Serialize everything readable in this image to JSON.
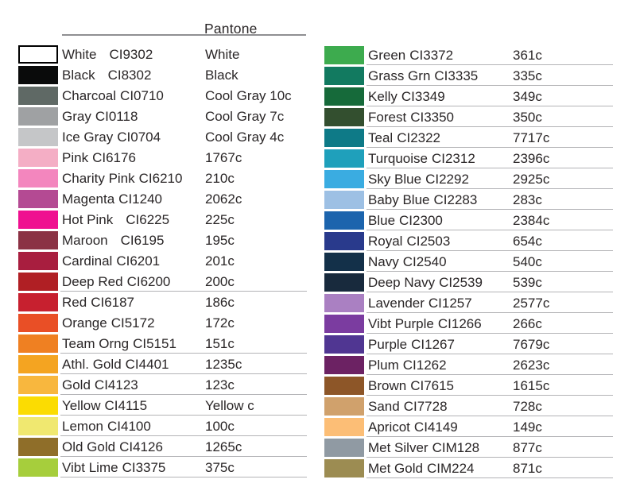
{
  "header": {
    "pantone_label": "Pantone"
  },
  "style": {
    "text_color": "#2a2627",
    "header_rule_color": "#8f8f92",
    "row_rule_color": "#b3b3b6",
    "background": "#ffffff"
  },
  "columns": [
    {
      "side": "left",
      "rows": [
        {
          "name": "White",
          "code": "CI9302",
          "pantone": "White",
          "swatch": "#ffffff",
          "swatch_border": "#000000",
          "wide_gap": true,
          "rule": false
        },
        {
          "name": "Black",
          "code": "CI8302",
          "pantone": "Black",
          "swatch": "#0a0b0b",
          "wide_gap": true,
          "rule": false
        },
        {
          "name": "Charcoal",
          "code": "CI0710",
          "pantone": "Cool Gray 10c",
          "swatch": "#5f6965",
          "wide_gap": false,
          "rule": false
        },
        {
          "name": "Gray",
          "code": "CI0118",
          "pantone": "Cool Gray 7c",
          "swatch": "#9fa1a3",
          "wide_gap": false,
          "rule": false
        },
        {
          "name": "Ice Gray",
          "code": "CI0704",
          "pantone": "Cool Gray 4c",
          "swatch": "#c5c6c8",
          "wide_gap": false,
          "rule": false
        },
        {
          "name": "Pink",
          "code": "CI6176",
          "pantone": "1767c",
          "swatch": "#f4aec5",
          "wide_gap": false,
          "rule": false
        },
        {
          "name": "Charity Pink",
          "code": "CI6210",
          "pantone": "210c",
          "swatch": "#f386be",
          "wide_gap": false,
          "rule": false
        },
        {
          "name": "Magenta",
          "code": "CI1240",
          "pantone": "2062c",
          "swatch": "#b44a93",
          "wide_gap": false,
          "rule": false
        },
        {
          "name": "Hot Pink",
          "code": "CI6225",
          "pantone": "225c",
          "swatch": "#ef1090",
          "wide_gap": true,
          "rule": false
        },
        {
          "name": "Maroon",
          "code": "CI6195",
          "pantone": "195c",
          "swatch": "#8b3244",
          "wide_gap": true,
          "rule": false
        },
        {
          "name": "Cardinal",
          "code": "CI6201",
          "pantone": "201c",
          "swatch": "#a81e3f",
          "wide_gap": false,
          "rule": false
        },
        {
          "name": "Deep Red",
          "code": "CI6200",
          "pantone": "200c",
          "swatch": "#b01f24",
          "wide_gap": false,
          "rule": true
        },
        {
          "name": "Red",
          "code": "CI6187",
          "pantone": "186c",
          "swatch": "#c7202f",
          "wide_gap": false,
          "rule": false
        },
        {
          "name": "Orange",
          "code": "CI5172",
          "pantone": "172c",
          "swatch": "#e94f26",
          "wide_gap": false,
          "rule": false
        },
        {
          "name": "Team Orng",
          "code": "CI5151",
          "pantone": "151c",
          "swatch": "#ef8022",
          "wide_gap": false,
          "rule": true
        },
        {
          "name": "Athl. Gold",
          "code": "CI4401",
          "pantone": "1235c",
          "swatch": "#f4a421",
          "wide_gap": false,
          "rule": true
        },
        {
          "name": "Gold",
          "code": "CI4123",
          "pantone": "123c",
          "swatch": "#f8b73e",
          "wide_gap": false,
          "rule": true
        },
        {
          "name": "Yellow",
          "code": "CI4115",
          "pantone": "Yellow c",
          "swatch": "#fbdc02",
          "wide_gap": false,
          "rule": true
        },
        {
          "name": "Lemon",
          "code": "CI4100",
          "pantone": "100c",
          "swatch": "#f0e870",
          "wide_gap": false,
          "rule": true
        },
        {
          "name": "Old Gold",
          "code": "CI4126",
          "pantone": "1265c",
          "swatch": "#8f6e29",
          "wide_gap": false,
          "rule": true
        },
        {
          "name": "Vibt Lime",
          "code": "CI3375",
          "pantone": "375c",
          "swatch": "#a6ce3c",
          "wide_gap": false,
          "rule": true
        }
      ]
    },
    {
      "side": "right",
      "rows": [
        {
          "name": "Green",
          "code": "CI3372",
          "pantone": "361c",
          "swatch": "#3dab4e",
          "wide_gap": false,
          "rule": true
        },
        {
          "name": "Grass Grn",
          "code": "CI3335",
          "pantone": "335c",
          "swatch": "#127a60",
          "wide_gap": false,
          "rule": true
        },
        {
          "name": "Kelly",
          "code": "CI3349",
          "pantone": "349c",
          "swatch": "#166a3a",
          "wide_gap": false,
          "rule": true
        },
        {
          "name": "Forest",
          "code": "CI3350",
          "pantone": "350c",
          "swatch": "#334f2f",
          "wide_gap": false,
          "rule": true
        },
        {
          "name": "Teal",
          "code": "CI2322",
          "pantone": "7717c",
          "swatch": "#0e7a87",
          "wide_gap": false,
          "rule": true
        },
        {
          "name": "Turquoise",
          "code": "CI2312",
          "pantone": "2396c",
          "swatch": "#1fa0bb",
          "wide_gap": false,
          "rule": true
        },
        {
          "name": "Sky Blue",
          "code": "CI2292",
          "pantone": "2925c",
          "swatch": "#3aace1",
          "wide_gap": false,
          "rule": true
        },
        {
          "name": "Baby Blue",
          "code": "CI2283",
          "pantone": "283c",
          "swatch": "#9dc0e4",
          "wide_gap": false,
          "rule": true
        },
        {
          "name": "Blue",
          "code": "CI2300",
          "pantone": "2384c",
          "swatch": "#1c64ad",
          "wide_gap": false,
          "rule": true
        },
        {
          "name": "Royal",
          "code": "CI2503",
          "pantone": "654c",
          "swatch": "#293a8c",
          "wide_gap": false,
          "rule": true
        },
        {
          "name": "Navy",
          "code": "CI2540",
          "pantone": "540c",
          "swatch": "#133049",
          "wide_gap": false,
          "rule": true
        },
        {
          "name": "Deep Navy",
          "code": "CI2539",
          "pantone": "539c",
          "swatch": "#182a3d",
          "wide_gap": false,
          "rule": true
        },
        {
          "name": "Lavender",
          "code": "CI1257",
          "pantone": "2577c",
          "swatch": "#aa80c2",
          "wide_gap": false,
          "rule": true
        },
        {
          "name": "Vibt Purple",
          "code": "CI1266",
          "pantone": "266c",
          "swatch": "#7b3ca0",
          "wide_gap": false,
          "rule": true
        },
        {
          "name": "Purple",
          "code": "CI1267",
          "pantone": "7679c",
          "swatch": "#503692",
          "wide_gap": false,
          "rule": true
        },
        {
          "name": "Plum",
          "code": "CI1262",
          "pantone": "2623c",
          "swatch": "#6c2263",
          "wide_gap": false,
          "rule": true
        },
        {
          "name": "Brown",
          "code": "CI7615",
          "pantone": "1615c",
          "swatch": "#8d5628",
          "wide_gap": false,
          "rule": true
        },
        {
          "name": "Sand",
          "code": "CI7728",
          "pantone": "728c",
          "swatch": "#d0a16c",
          "wide_gap": false,
          "rule": true
        },
        {
          "name": "Apricot",
          "code": "CI4149",
          "pantone": "149c",
          "swatch": "#fcbe76",
          "wide_gap": false,
          "rule": true
        },
        {
          "name": "Met Silver",
          "code": "CIM128",
          "pantone": "877c",
          "swatch": "#909aa3",
          "wide_gap": false,
          "rule": true
        },
        {
          "name": "Met Gold",
          "code": "CIM224",
          "pantone": "871c",
          "swatch": "#9c8c52",
          "wide_gap": false,
          "rule": true
        }
      ]
    }
  ]
}
